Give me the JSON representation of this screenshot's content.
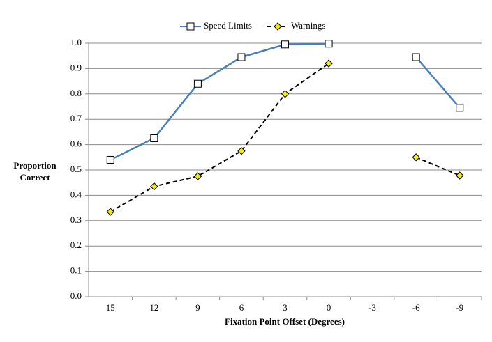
{
  "chart_data": {
    "type": "line",
    "y_label": "Proportion Correct",
    "x_label": "Fixation Point Offset (Degrees)",
    "categories": [
      "15",
      "12",
      "9",
      "6",
      "3",
      "0",
      "-3",
      "-6",
      "-9"
    ],
    "series": [
      {
        "name": "Speed Limits",
        "color": "#4a7ebb",
        "marker": "square",
        "marker_color": "#ffffff",
        "dashed": false,
        "values": [
          0.54,
          0.625,
          0.84,
          0.945,
          0.995,
          0.998,
          null,
          0.945,
          0.745
        ]
      },
      {
        "name": "Warnings",
        "color": "#000000",
        "marker": "diamond",
        "marker_color": "#f5e51b",
        "dashed": true,
        "values": [
          0.335,
          0.435,
          0.475,
          0.575,
          0.8,
          0.92,
          null,
          0.55,
          0.478
        ]
      }
    ],
    "ylim": [
      0,
      1
    ],
    "yticks": [
      {
        "value": 0,
        "label": "0.0"
      },
      0.1,
      0.2,
      0.3,
      0.4,
      0.5,
      0.6,
      0.7,
      0.8,
      0.9,
      {
        "value": 1,
        "label": "1.0"
      }
    ],
    "grid": true,
    "legend": "top"
  }
}
